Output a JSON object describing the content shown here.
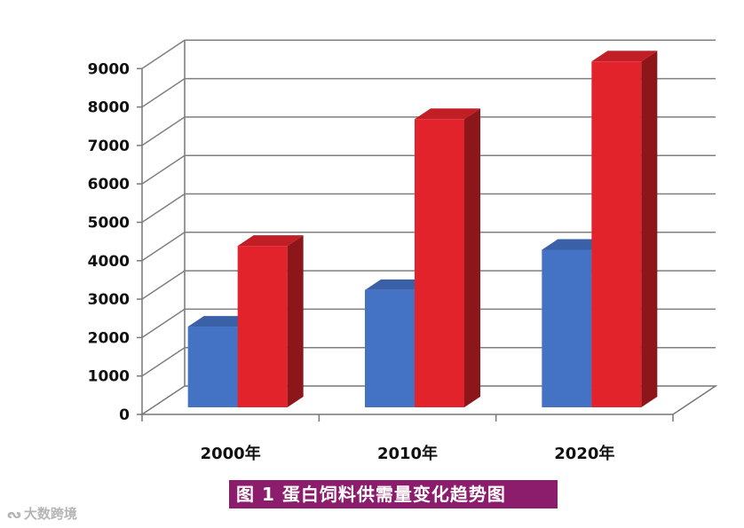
{
  "chart_data": {
    "type": "bar",
    "categories": [
      "2000年",
      "2010年",
      "2020年"
    ],
    "series": [
      {
        "values": [
          2100,
          3050,
          4100
        ],
        "color": "#4472c4"
      },
      {
        "values": [
          4200,
          7500,
          9000
        ],
        "color": "#e3232b"
      }
    ],
    "ylim": [
      0,
      9000
    ],
    "yticks": [
      0,
      1000,
      2000,
      3000,
      4000,
      5000,
      6000,
      7000,
      8000,
      9000
    ],
    "grid": true,
    "legend": "none"
  },
  "caption": "图 1   蛋白饲料供需量变化趋势图",
  "watermark": "大数跨境",
  "watermark_icon": "logo-icon"
}
